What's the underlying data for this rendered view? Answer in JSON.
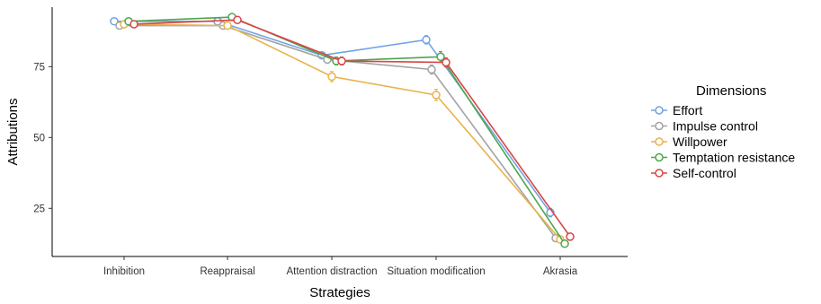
{
  "chart_data": {
    "type": "line",
    "xlabel": "Strategies",
    "ylabel": "Attributions",
    "categories": [
      "Inhibition",
      "Reappraisal",
      "Attention distraction",
      "Situation modification",
      "Akrasia"
    ],
    "yticks": [
      25,
      50,
      75
    ],
    "ylim": [
      8,
      96
    ],
    "grid": false,
    "legend": {
      "title": "Dimensions",
      "position": "right"
    },
    "series": [
      {
        "name": "Effort",
        "color": "#6fa3e6",
        "values": [
          91,
          91,
          79,
          84.5,
          23.5
        ],
        "errors": [
          0.8,
          0.8,
          1.2,
          1.5,
          1.5
        ]
      },
      {
        "name": "Impulse control",
        "color": "#a3a3a3",
        "values": [
          89.5,
          89.5,
          77.5,
          74,
          14.5
        ],
        "errors": [
          0.8,
          0.8,
          1.2,
          1.6,
          1.2
        ]
      },
      {
        "name": "Willpower",
        "color": "#e8b34b",
        "values": [
          90,
          89.5,
          71.5,
          65,
          14
        ],
        "errors": [
          0.8,
          0.8,
          1.8,
          2.0,
          1.2
        ]
      },
      {
        "name": "Temptation resistance",
        "color": "#4ca64c",
        "values": [
          91,
          92.5,
          77,
          78.5,
          12.5
        ],
        "errors": [
          0.8,
          0.8,
          1.4,
          1.8,
          1.0
        ]
      },
      {
        "name": "Self-control",
        "color": "#d94545",
        "values": [
          90,
          91.5,
          77,
          76.5,
          15
        ],
        "errors": [
          0.8,
          0.8,
          1.4,
          1.6,
          1.2
        ]
      }
    ]
  }
}
